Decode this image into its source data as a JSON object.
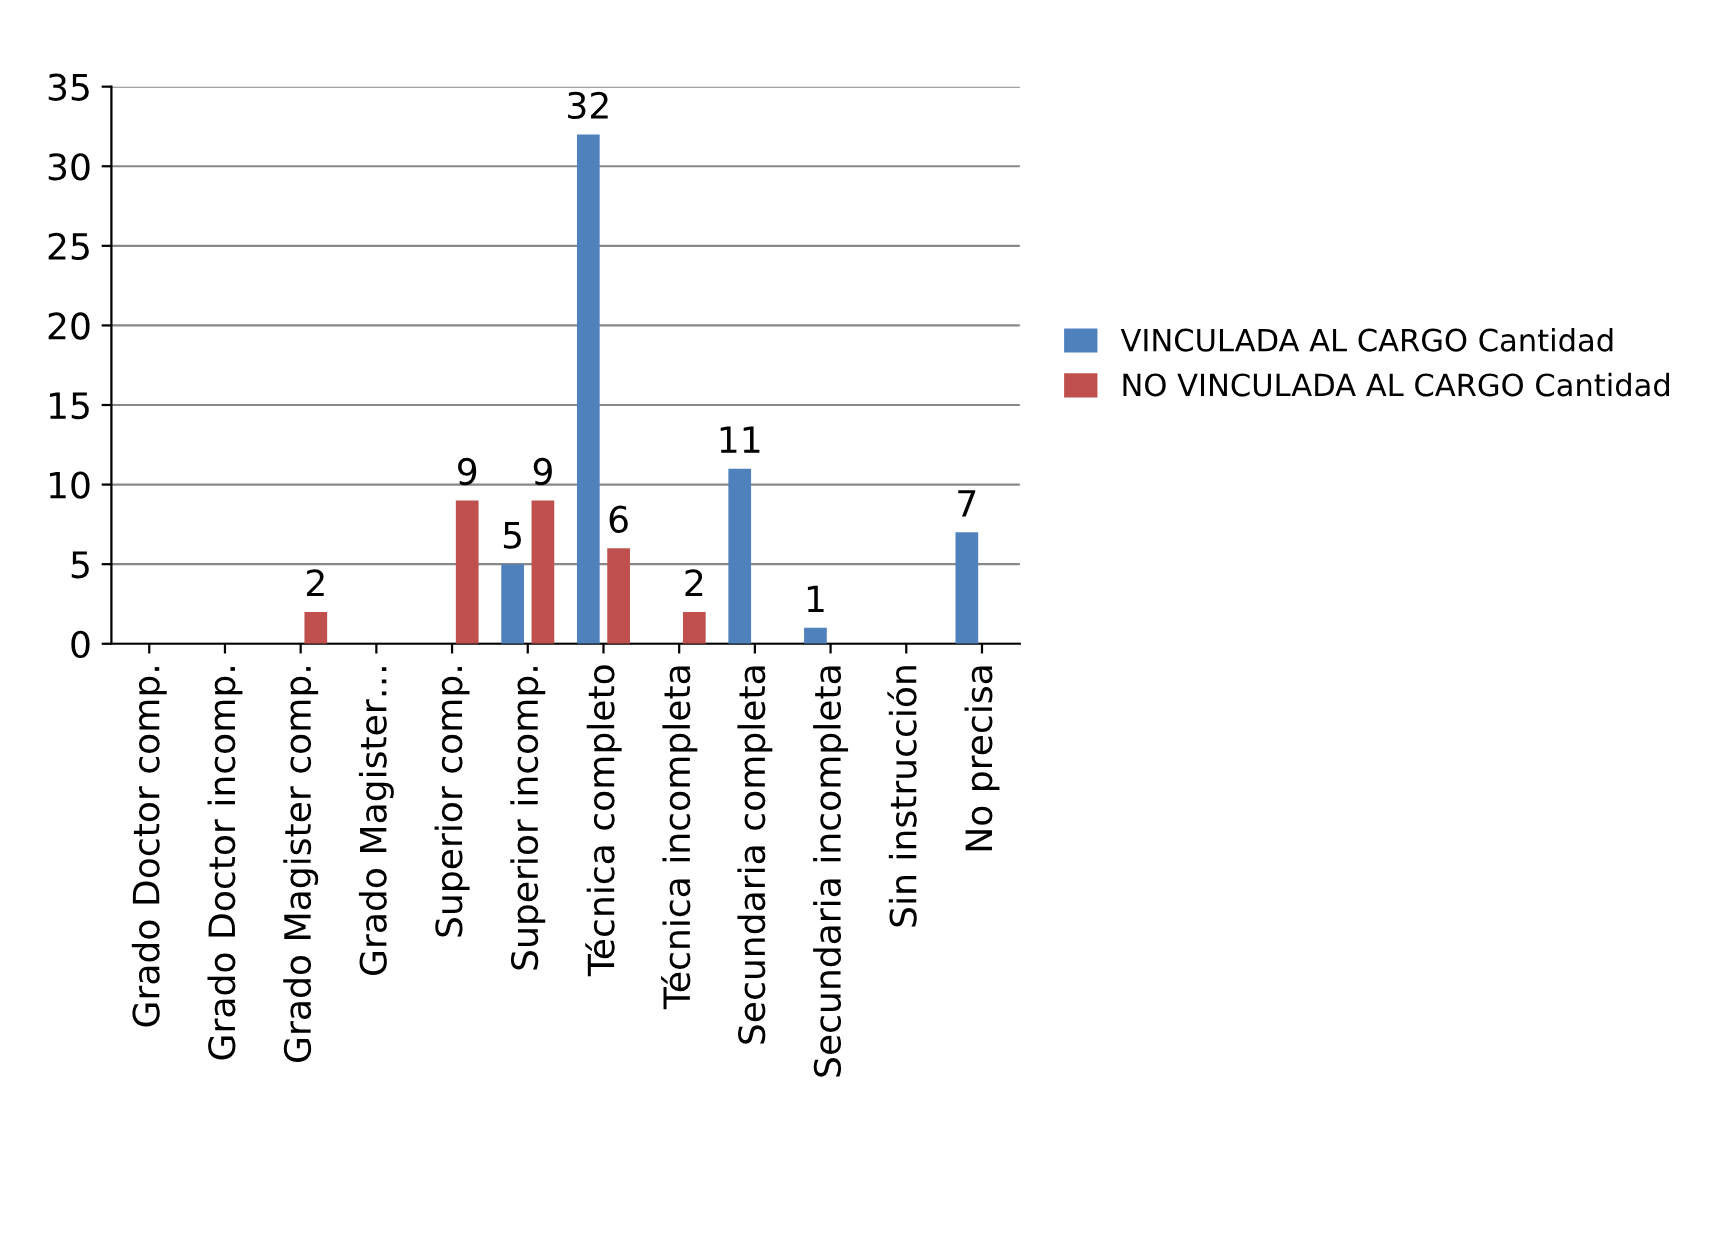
{
  "chart_data": {
    "type": "bar",
    "categories": [
      "Grado Doctor comp.",
      "Grado Doctor incomp.",
      "Grado Magister comp.",
      "Grado Magister…",
      "Superior comp.",
      "Superior incomp.",
      "Técnica completo",
      "Técnica incompleta",
      "Secundaria completa",
      "Secundaria incompleta",
      "Sin instrucción",
      "No precisa"
    ],
    "series": [
      {
        "name": "VINCULADA AL CARGO Cantidad",
        "color": "#4f81bd",
        "values": [
          0,
          0,
          0,
          0,
          0,
          5,
          32,
          0,
          11,
          1,
          0,
          7
        ],
        "value_labels": [
          null,
          null,
          null,
          null,
          null,
          "5",
          "32",
          null,
          "11",
          "1",
          null,
          "7"
        ]
      },
      {
        "name": "NO VINCULADA AL CARGO Cantidad",
        "color": "#c0504d",
        "values": [
          0,
          0,
          2,
          0,
          9,
          9,
          6,
          2,
          0,
          0,
          0,
          0
        ],
        "value_labels": [
          null,
          null,
          "2",
          null,
          "9",
          "9",
          "6",
          "2",
          null,
          null,
          null,
          null
        ]
      }
    ],
    "ylim": [
      0,
      35
    ],
    "yticks": [
      0,
      5,
      10,
      15,
      20,
      25,
      30,
      35
    ],
    "grid": "y",
    "legend": "right"
  }
}
